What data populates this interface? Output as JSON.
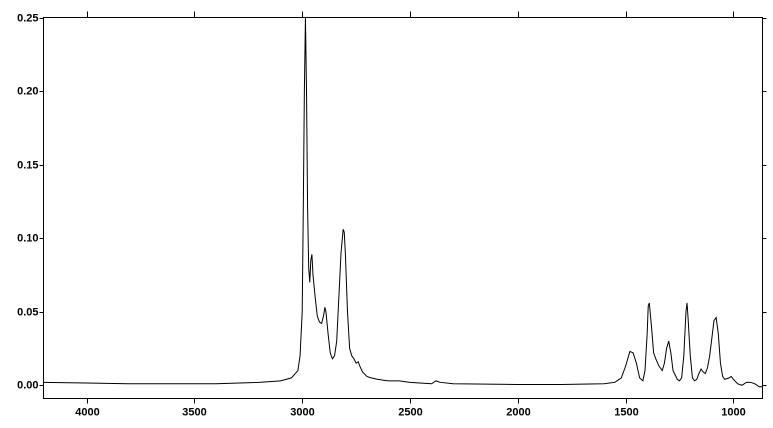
{
  "chart_data": {
    "type": "line",
    "xlim": [
      4200,
      865
    ],
    "xticks": [
      4000,
      3500,
      3000,
      2500,
      2000,
      1500,
      1000
    ],
    "ylim": [
      -0.009,
      0.25
    ],
    "yticks": [
      {
        "value": 0,
        "label": "0.00"
      },
      0.05,
      {
        "value": 0.1,
        "label": "0.10"
      },
      0.15,
      {
        "value": 0.2,
        "label": "0.20"
      },
      0.25
    ],
    "grid": false,
    "series": [
      {
        "color": "#000000",
        "x": [
          4200,
          4000,
          3800,
          3600,
          3400,
          3200,
          3100,
          3050,
          3020,
          3010,
          3000,
          2995,
          2990,
          2985,
          2980,
          2975,
          2970,
          2965,
          2960,
          2955,
          2950,
          2940,
          2930,
          2920,
          2910,
          2900,
          2895,
          2890,
          2880,
          2870,
          2860,
          2850,
          2840,
          2830,
          2820,
          2810,
          2805,
          2800,
          2790,
          2780,
          2770,
          2760,
          2750,
          2740,
          2730,
          2720,
          2700,
          2680,
          2650,
          2600,
          2550,
          2500,
          2400,
          2380,
          2360,
          2300,
          2000,
          1800,
          1600,
          1550,
          1520,
          1500,
          1480,
          1465,
          1450,
          1435,
          1420,
          1410,
          1400,
          1395,
          1390,
          1380,
          1370,
          1360,
          1345,
          1330,
          1320,
          1310,
          1300,
          1290,
          1280,
          1260,
          1250,
          1240,
          1230,
          1220,
          1215,
          1210,
          1200,
          1190,
          1180,
          1170,
          1160,
          1150,
          1140,
          1130,
          1120,
          1110,
          1100,
          1090,
          1080,
          1070,
          1060,
          1050,
          1040,
          1020,
          1010,
          1000,
          980,
          960,
          940,
          920,
          900,
          880,
          865
        ],
        "values": [
          0.002,
          0.0015,
          0.001,
          0.001,
          0.001,
          0.002,
          0.003,
          0.005,
          0.01,
          0.02,
          0.05,
          0.12,
          0.2,
          0.25,
          0.2,
          0.12,
          0.08,
          0.07,
          0.085,
          0.089,
          0.075,
          0.06,
          0.047,
          0.043,
          0.042,
          0.048,
          0.053,
          0.05,
          0.035,
          0.022,
          0.018,
          0.02,
          0.03,
          0.06,
          0.09,
          0.106,
          0.104,
          0.09,
          0.05,
          0.025,
          0.02,
          0.018,
          0.015,
          0.016,
          0.012,
          0.009,
          0.006,
          0.005,
          0.004,
          0.003,
          0.003,
          0.002,
          0.001,
          0.003,
          0.002,
          0.001,
          0.0005,
          0.0005,
          0.001,
          0.002,
          0.005,
          0.013,
          0.023,
          0.022,
          0.015,
          0.005,
          0.003,
          0.01,
          0.035,
          0.054,
          0.056,
          0.04,
          0.022,
          0.018,
          0.013,
          0.01,
          0.015,
          0.025,
          0.03,
          0.022,
          0.01,
          0.004,
          0.003,
          0.005,
          0.02,
          0.05,
          0.056,
          0.045,
          0.02,
          0.005,
          0.003,
          0.004,
          0.008,
          0.011,
          0.009,
          0.008,
          0.012,
          0.02,
          0.032,
          0.044,
          0.046,
          0.035,
          0.015,
          0.006,
          0.004,
          0.005,
          0.006,
          0.004,
          0.001,
          0,
          0.002,
          0.002,
          0.001,
          -0.001,
          -0.001
        ]
      }
    ]
  }
}
